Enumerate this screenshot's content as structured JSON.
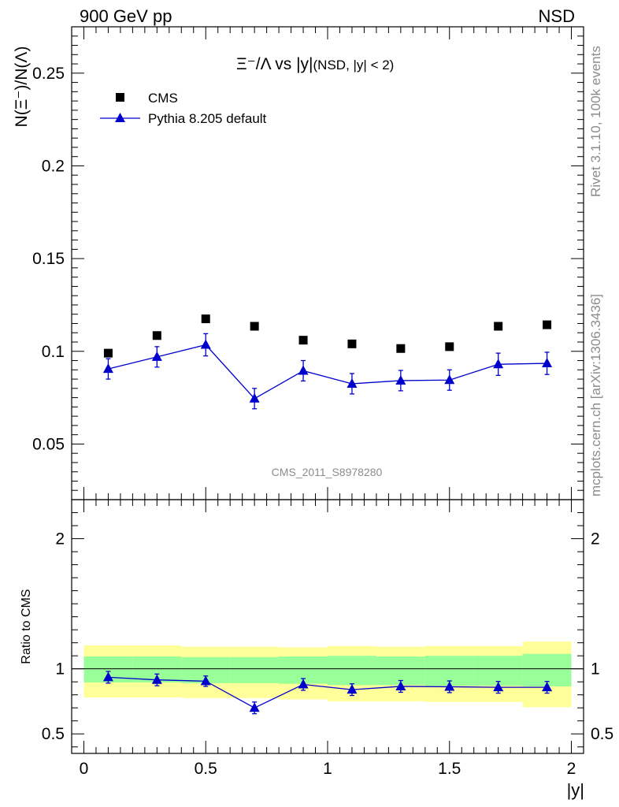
{
  "header": {
    "left": "900 GeV pp",
    "right": "NSD"
  },
  "side_labels": {
    "rivet": "Rivet 3.1.10,  100k events",
    "mcplots": "mcplots.cern.ch [arXiv:1306.3436]"
  },
  "chart_data": {
    "type": "scatter",
    "title": "Ξ⁻/Λ vs |y|",
    "title_note": "(NSD, |y| < 2)",
    "ylabel": "N(Ξ⁻)/N(Λ)",
    "xlabel": "|y|",
    "analysis_id": "CMS_2011_S8978280",
    "xlim": [
      -0.05,
      2.05
    ],
    "ylim": [
      0.02,
      0.275
    ],
    "x_ticks": [
      "0",
      "0.5",
      "1",
      "1.5",
      "2"
    ],
    "y_ticks": [
      "0.05",
      "0.1",
      "0.15",
      "0.2",
      "0.25"
    ],
    "x": [
      0.1,
      0.3,
      0.5,
      0.7,
      0.9,
      1.1,
      1.3,
      1.5,
      1.7,
      1.9
    ],
    "series": [
      {
        "name": "CMS",
        "color": "#000000",
        "marker": "square",
        "values": [
          0.099,
          0.1085,
          0.1175,
          0.1135,
          0.106,
          0.104,
          0.1015,
          0.1025,
          0.1135,
          0.1143
        ]
      },
      {
        "name": "Pythia 8.205 default",
        "color": "#0000cc",
        "marker": "triangle",
        "values": [
          0.0905,
          0.097,
          0.1035,
          0.0745,
          0.0895,
          0.0825,
          0.0842,
          0.0845,
          0.093,
          0.0935
        ],
        "errors": [
          0.0055,
          0.0055,
          0.006,
          0.0055,
          0.0055,
          0.0055,
          0.0055,
          0.0055,
          0.006,
          0.006
        ]
      }
    ],
    "ratio": {
      "ylabel": "Ratio to CMS",
      "ylim": [
        0.35,
        2.3
      ],
      "y_ticks": [
        "0.5",
        "1",
        "2"
      ],
      "bin_edges": [
        0.0,
        0.2,
        0.4,
        0.6,
        0.8,
        1.0,
        1.2,
        1.4,
        1.6,
        1.8,
        2.0
      ],
      "band_outer": [
        [
          0.78,
          1.18
        ],
        [
          0.78,
          1.18
        ],
        [
          0.775,
          1.17
        ],
        [
          0.775,
          1.17
        ],
        [
          0.765,
          1.165
        ],
        [
          0.75,
          1.175
        ],
        [
          0.75,
          1.17
        ],
        [
          0.745,
          1.175
        ],
        [
          0.745,
          1.175
        ],
        [
          0.705,
          1.21
        ]
      ],
      "band_inner": [
        [
          0.895,
          1.095
        ],
        [
          0.895,
          1.095
        ],
        [
          0.89,
          1.09
        ],
        [
          0.89,
          1.09
        ],
        [
          0.885,
          1.095
        ],
        [
          0.875,
          1.1
        ],
        [
          0.875,
          1.095
        ],
        [
          0.87,
          1.1
        ],
        [
          0.87,
          1.1
        ],
        [
          0.865,
          1.115
        ]
      ],
      "outer_color": "#ffff99",
      "inner_color": "#99ff99",
      "values": [
        0.935,
        0.915,
        0.905,
        0.7,
        0.88,
        0.84,
        0.865,
        0.862,
        0.858,
        0.858
      ],
      "errors": [
        0.045,
        0.045,
        0.04,
        0.045,
        0.045,
        0.045,
        0.045,
        0.045,
        0.045,
        0.045
      ]
    }
  }
}
